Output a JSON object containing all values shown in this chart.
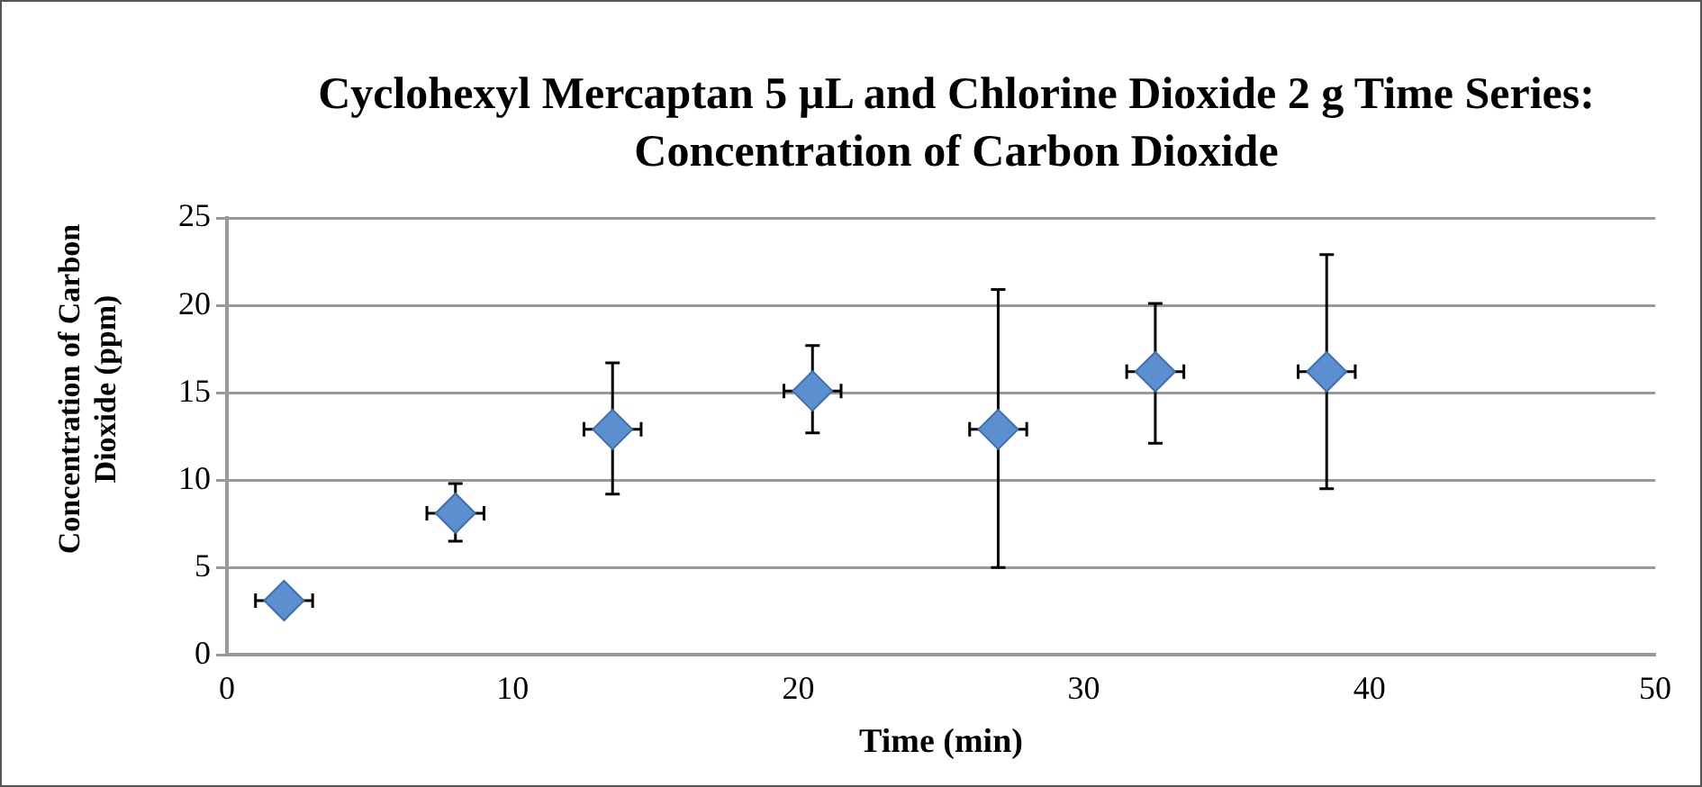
{
  "chart_data": {
    "type": "scatter",
    "title": "Cyclohexyl Mercaptan 5 µL and Chlorine Dioxide 2 g Time Series: Concentration of Carbon Dioxide",
    "xlabel": "Time (min)",
    "ylabel": "Concentration of Carbon Dioxide (ppm)",
    "x": [
      2,
      8,
      13.5,
      20.5,
      27,
      32.5,
      38.5
    ],
    "values": [
      3.1,
      8.1,
      12.9,
      15.1,
      12.9,
      16.2,
      16.2
    ],
    "errors": [
      null,
      [
        6.5,
        9.8
      ],
      [
        9.2,
        16.7
      ],
      [
        12.7,
        17.7
      ],
      [
        5.0,
        20.9
      ],
      [
        12.1,
        20.1
      ],
      [
        9.5,
        22.9
      ]
    ],
    "xerrors": [
      1,
      1,
      1,
      1,
      1,
      1,
      1
    ],
    "color": "#5b8fd0",
    "marker": "diamond",
    "xlim": [
      0,
      50
    ],
    "xticks": [
      0,
      10,
      20,
      30,
      40,
      50
    ],
    "ylim": [
      0,
      25
    ],
    "yticks": [
      0,
      5,
      10,
      15,
      20,
      25
    ],
    "grid": "y",
    "legend": false
  }
}
